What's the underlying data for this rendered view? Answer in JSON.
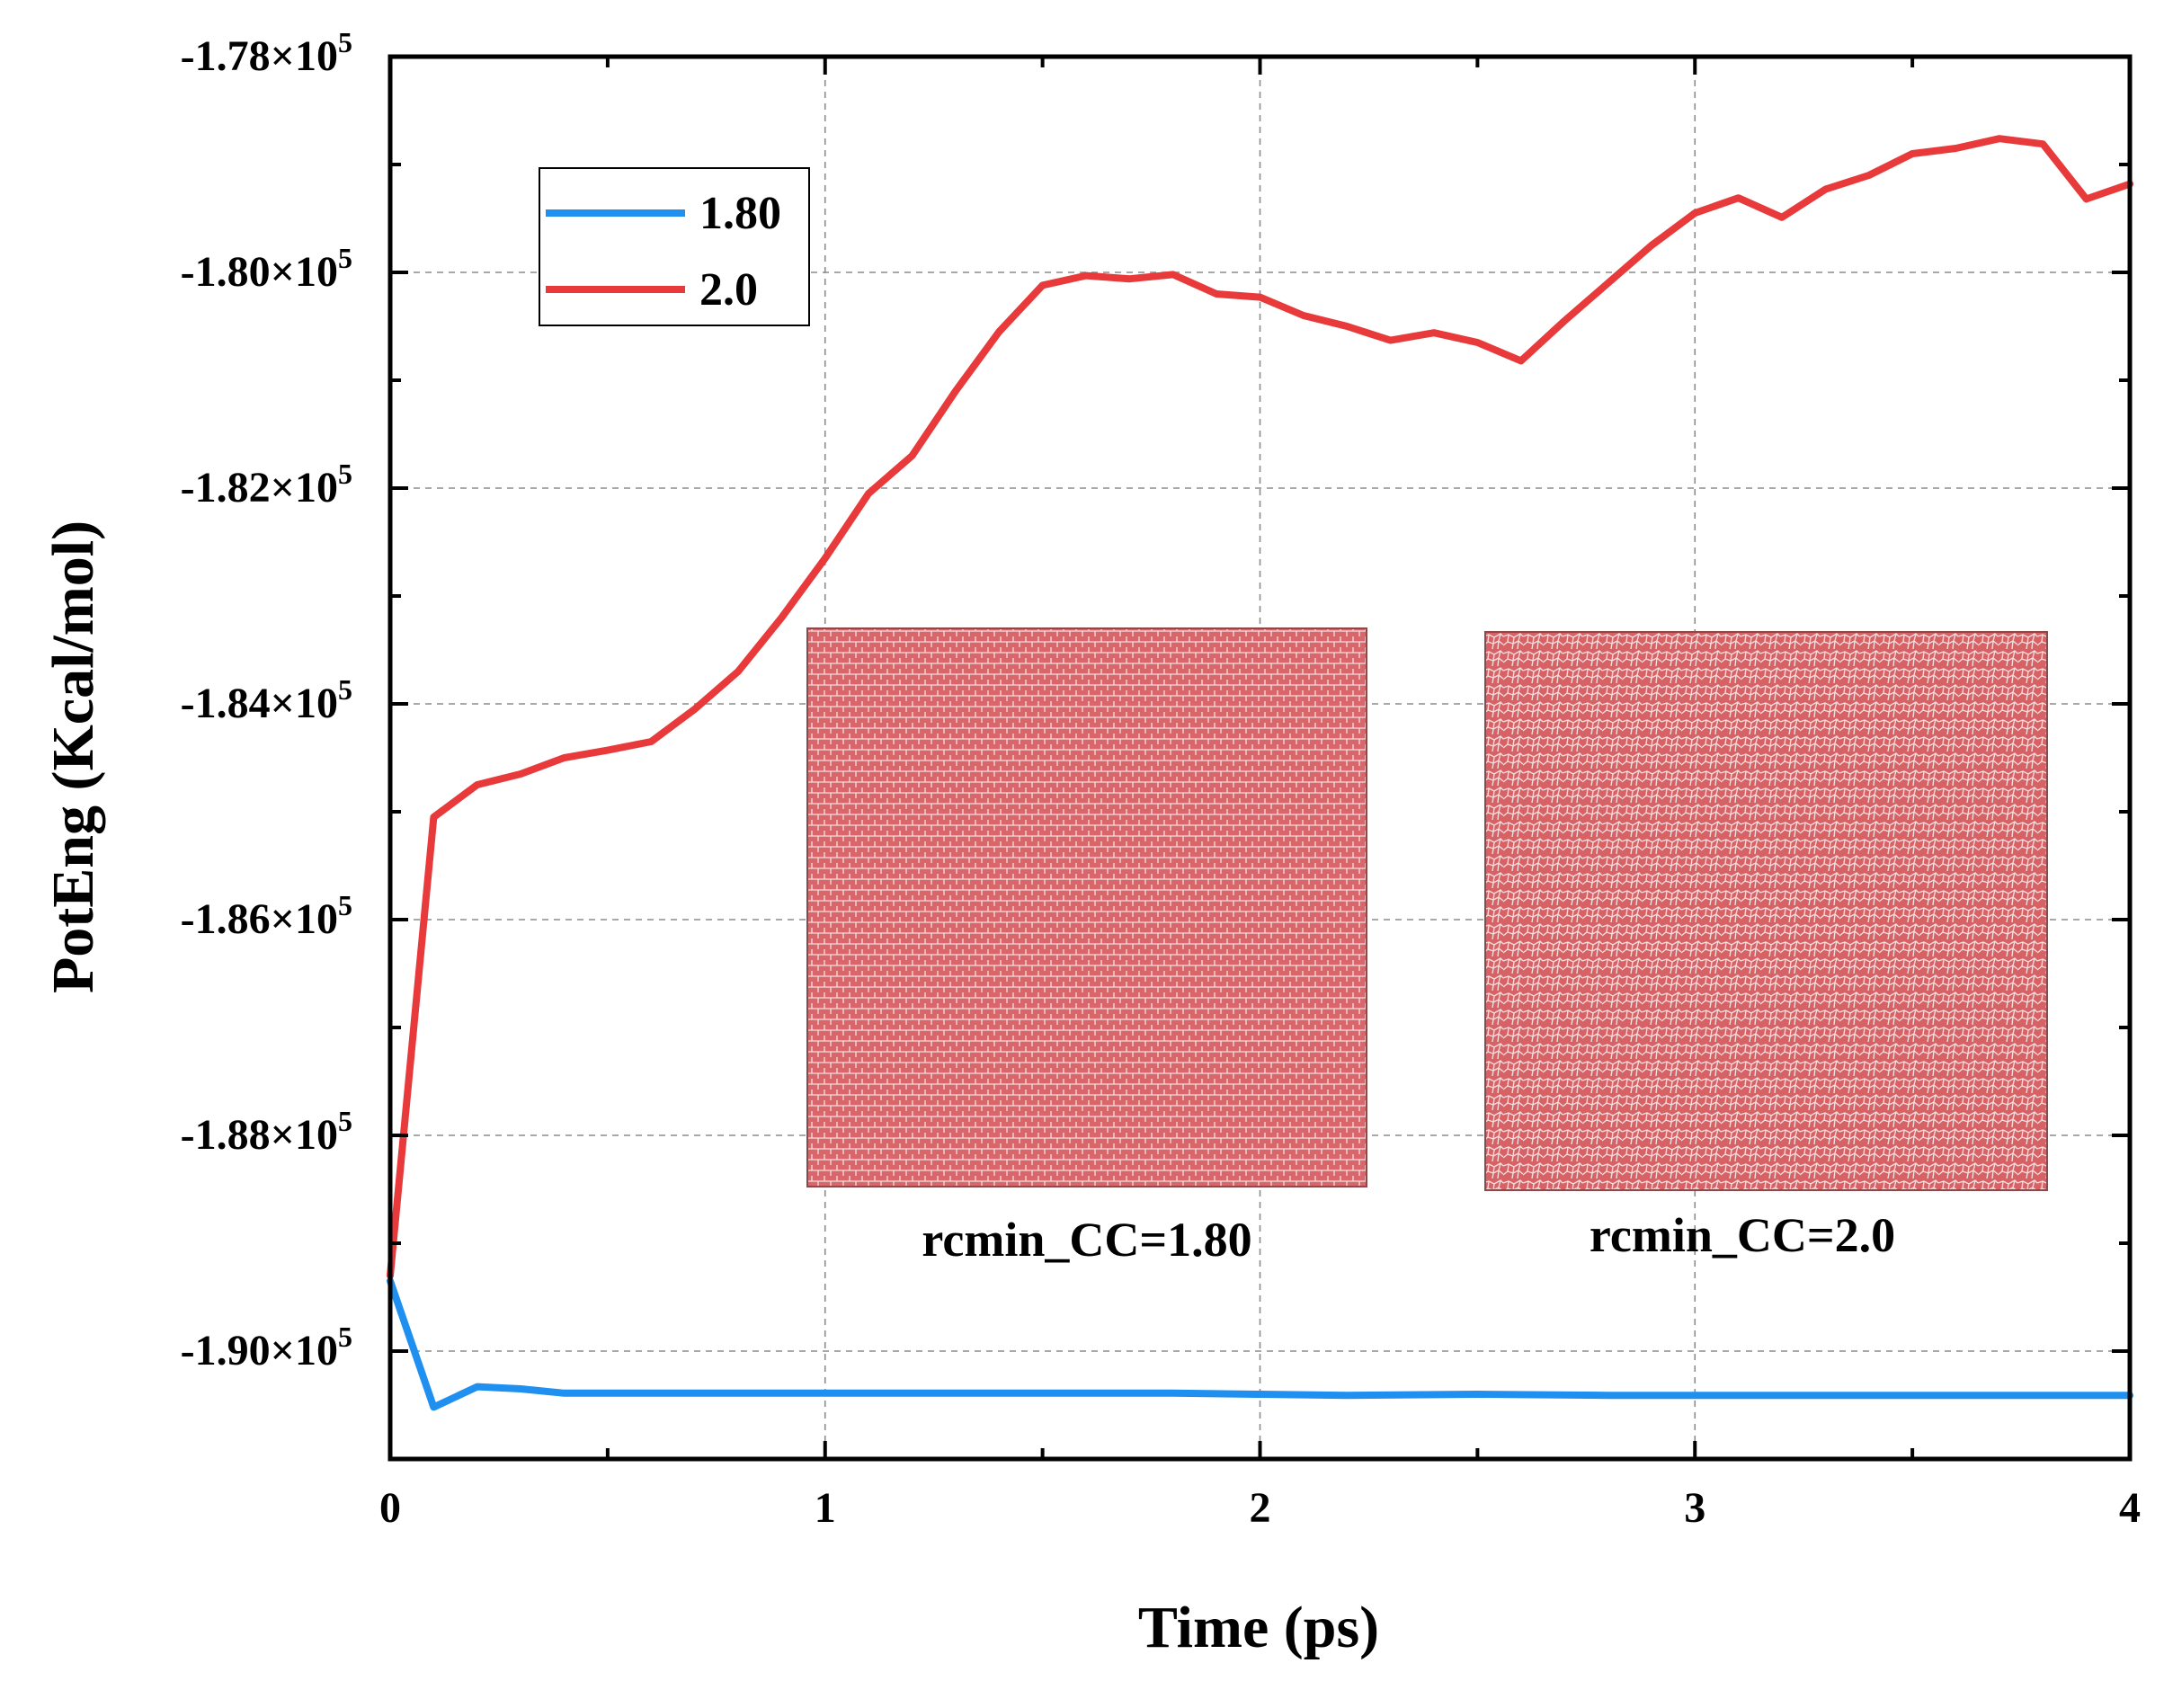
{
  "chart_data": {
    "type": "line",
    "title": "",
    "xlabel": "Time (ps)",
    "ylabel": "PotEng (Kcal/mol)",
    "xlim": [
      0,
      4
    ],
    "ylim": [
      -191000,
      -178000
    ],
    "grid": true,
    "legend_position": "top-left",
    "x_ticks": [
      0,
      1,
      2,
      3,
      4
    ],
    "x_tick_labels": [
      "0",
      "1",
      "2",
      "3",
      "4"
    ],
    "y_ticks": [
      -178000,
      -180000,
      -182000,
      -184000,
      -186000,
      -188000,
      -190000
    ],
    "y_tick_mantissas": [
      "-1.78×10",
      "-1.80×10",
      "-1.82×10",
      "-1.84×10",
      "-1.86×10",
      "-1.88×10",
      "-1.90×10"
    ],
    "y_tick_exponent": "5",
    "series": [
      {
        "name": "1.80",
        "color": "#1f8ff0",
        "x": [
          0,
          0.1,
          0.2,
          0.3,
          0.4,
          0.6,
          0.8,
          1.0,
          1.2,
          1.5,
          1.8,
          2.0,
          2.2,
          2.5,
          2.8,
          3.0,
          3.5,
          4.0
        ],
        "y": [
          -189350,
          -190520,
          -190330,
          -190350,
          -190390,
          -190390,
          -190390,
          -190390,
          -190390,
          -190390,
          -190390,
          -190400,
          -190410,
          -190400,
          -190410,
          -190410,
          -190410,
          -190410
        ]
      },
      {
        "name": "2.0",
        "color": "#e8393b",
        "x": [
          0,
          0.1,
          0.2,
          0.3,
          0.4,
          0.5,
          0.6,
          0.7,
          0.8,
          0.9,
          1.0,
          1.1,
          1.2,
          1.3,
          1.4,
          1.5,
          1.6,
          1.7,
          1.8,
          1.9,
          2.0,
          2.1,
          2.2,
          2.3,
          2.4,
          2.5,
          2.6,
          2.7,
          2.8,
          2.9,
          3.0,
          3.1,
          3.2,
          3.3,
          3.4,
          3.5,
          3.6,
          3.7,
          3.8,
          3.9,
          4.0
        ],
        "y": [
          -189300,
          -185050,
          -184750,
          -184650,
          -184500,
          -184430,
          -184350,
          -184050,
          -183700,
          -183200,
          -182650,
          -182050,
          -181700,
          -181100,
          -180550,
          -180120,
          -180030,
          -180060,
          -180020,
          -180200,
          -180230,
          -180400,
          -180500,
          -180630,
          -180560,
          -180650,
          -180820,
          -180450,
          -180100,
          -179750,
          -179450,
          -179310,
          -179490,
          -179230,
          -179100,
          -178900,
          -178850,
          -178760,
          -178810,
          -179320,
          -179180
        ]
      }
    ],
    "insets": [
      {
        "caption": "rcmin_CC=1.80",
        "pattern": "ordered"
      },
      {
        "caption": "rcmin_CC=2.0",
        "pattern": "disordered"
      }
    ],
    "inset_color": "#d9666a"
  }
}
